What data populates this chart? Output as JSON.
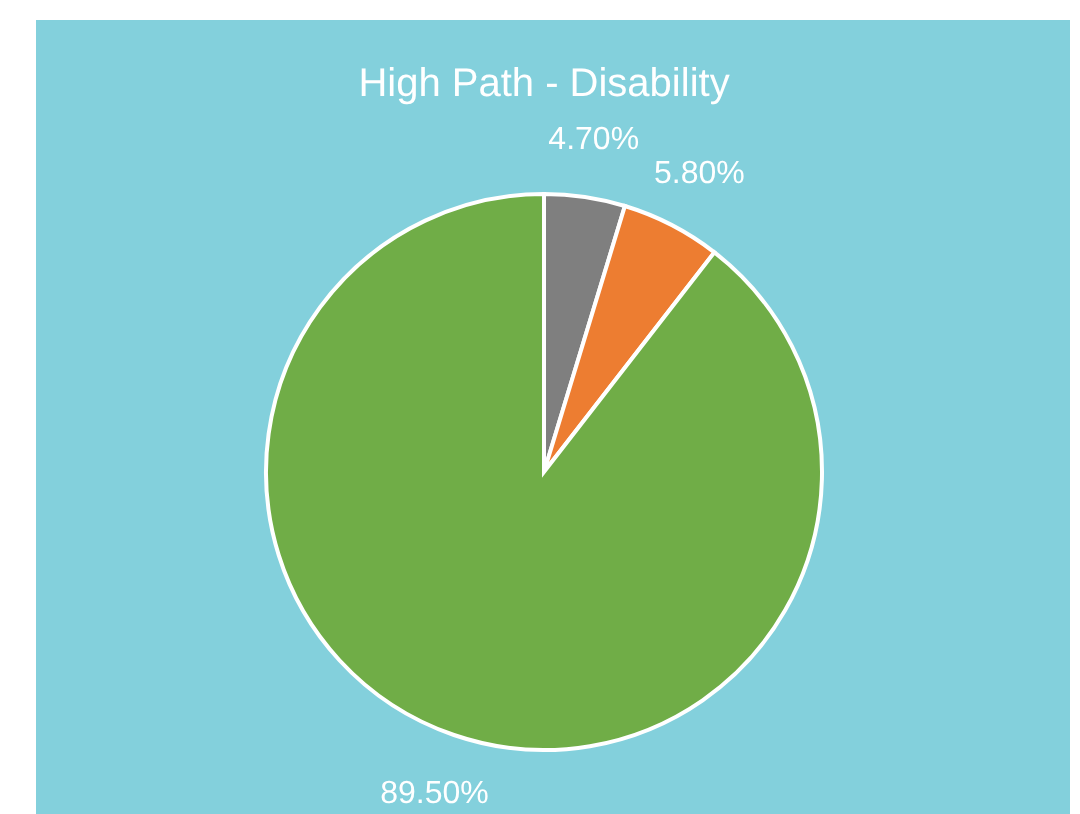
{
  "chart_data": {
    "type": "pie",
    "title": "High Path - Disability",
    "categories": [
      null,
      null,
      null
    ],
    "values": [
      4.7,
      5.8,
      89.5
    ],
    "colors": [
      "#7f7f7f",
      "#ed7d31",
      "#70ad47"
    ],
    "value_labels": [
      "4.70%",
      "5.80%",
      "89.50%"
    ]
  }
}
